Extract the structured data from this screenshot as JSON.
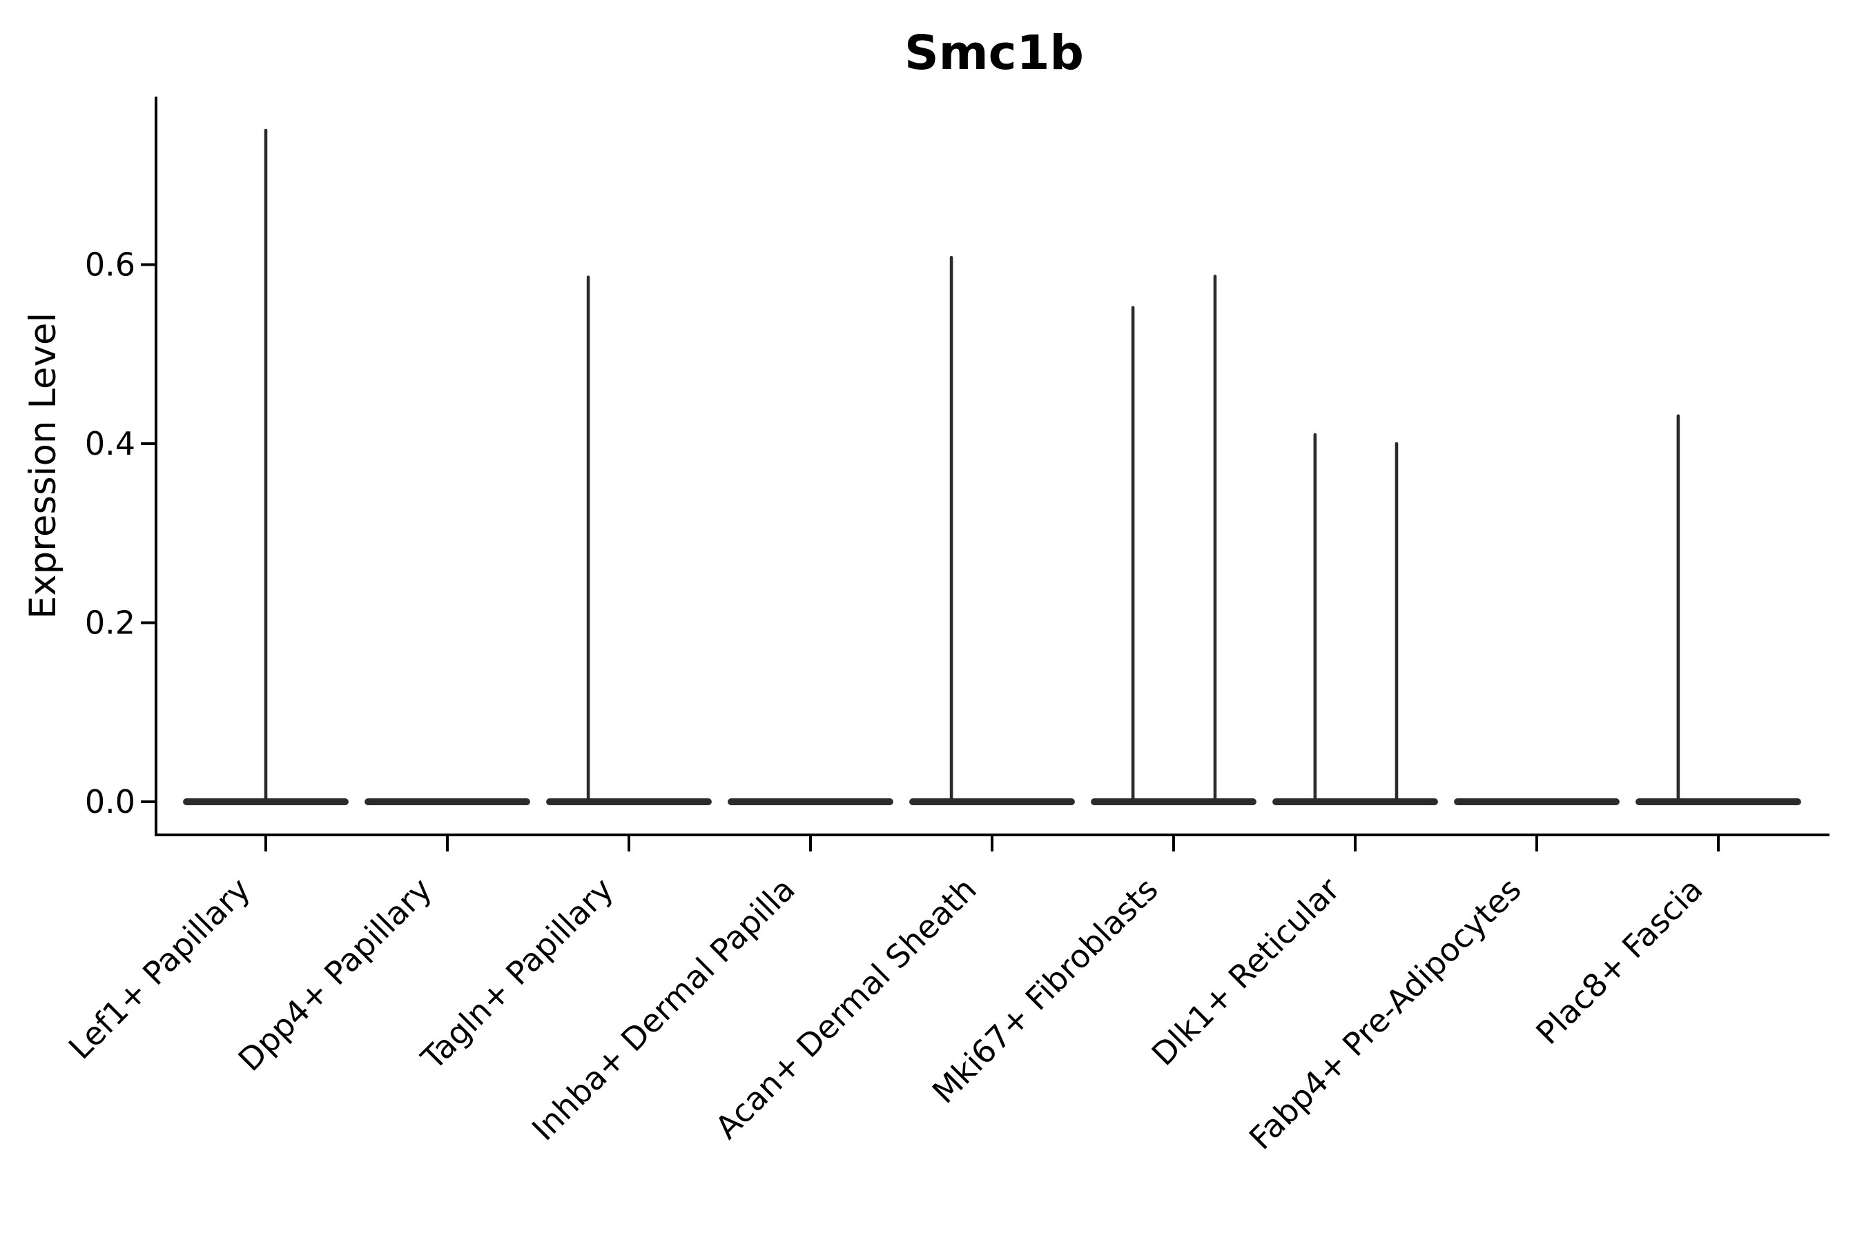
{
  "chart_data": {
    "type": "violin",
    "title": "Smc1b",
    "xlabel": "",
    "ylabel": "Expression Level",
    "grid": false,
    "legend": "none",
    "background": "#ffffff",
    "colors": {
      "violin_line": "#2b2b2b",
      "axis": "#000000",
      "text": "#000000"
    },
    "ylim": [
      -0.037,
      0.788
    ],
    "yticks": [
      {
        "value": 0.0,
        "label": "0.0"
      },
      {
        "value": 0.2,
        "label": "0.2"
      },
      {
        "value": 0.4,
        "label": "0.4"
      },
      {
        "value": 0.6,
        "label": "0.6"
      }
    ],
    "xticklabel_rotation_deg": 45,
    "categories": [
      "Lef1+ Papillary",
      "Dpp4+ Papillary",
      "Tagln+ Papillary",
      "Inhba+ Dermal Papilla",
      "Acan+ Dermal Sheath",
      "Mki67+ Fibroblasts",
      "Dlk1+ Reticular",
      "Fabp4+ Pre-Adipocytes",
      "Plac8+ Fascia"
    ],
    "violins": [
      {
        "label": "Lef1+ Papillary",
        "base_value": 0.0,
        "base_halfwidth": 0.456,
        "spikes": [
          {
            "offset": 0.0,
            "max": 0.75
          }
        ]
      },
      {
        "label": "Dpp4+ Papillary",
        "base_value": 0.0,
        "base_halfwidth": 0.456,
        "spikes": []
      },
      {
        "label": "Tagln+ Papillary",
        "base_value": 0.0,
        "base_halfwidth": 0.456,
        "spikes": [
          {
            "offset": -0.224,
            "max": 0.586
          }
        ]
      },
      {
        "label": "Inhba+ Dermal Papilla",
        "base_value": 0.0,
        "base_halfwidth": 0.456,
        "spikes": []
      },
      {
        "label": "Acan+ Dermal Sheath",
        "base_value": 0.0,
        "base_halfwidth": 0.456,
        "spikes": [
          {
            "offset": -0.224,
            "max": 0.608
          }
        ]
      },
      {
        "label": "Mki67+ Fibroblasts",
        "base_value": 0.0,
        "base_halfwidth": 0.456,
        "spikes": [
          {
            "offset": -0.224,
            "max": 0.552
          },
          {
            "offset": 0.228,
            "max": 0.587
          }
        ]
      },
      {
        "label": "Dlk1+ Reticular",
        "base_value": 0.0,
        "base_halfwidth": 0.456,
        "spikes": [
          {
            "offset": -0.221,
            "max": 0.41
          },
          {
            "offset": 0.228,
            "max": 0.4
          }
        ]
      },
      {
        "label": "Fabp4+ Pre-Adipocytes",
        "base_value": 0.0,
        "base_halfwidth": 0.456,
        "spikes": []
      },
      {
        "label": "Plac8+ Fascia",
        "base_value": 0.0,
        "base_halfwidth": 0.456,
        "spikes": [
          {
            "offset": -0.221,
            "max": 0.431
          }
        ]
      }
    ]
  }
}
